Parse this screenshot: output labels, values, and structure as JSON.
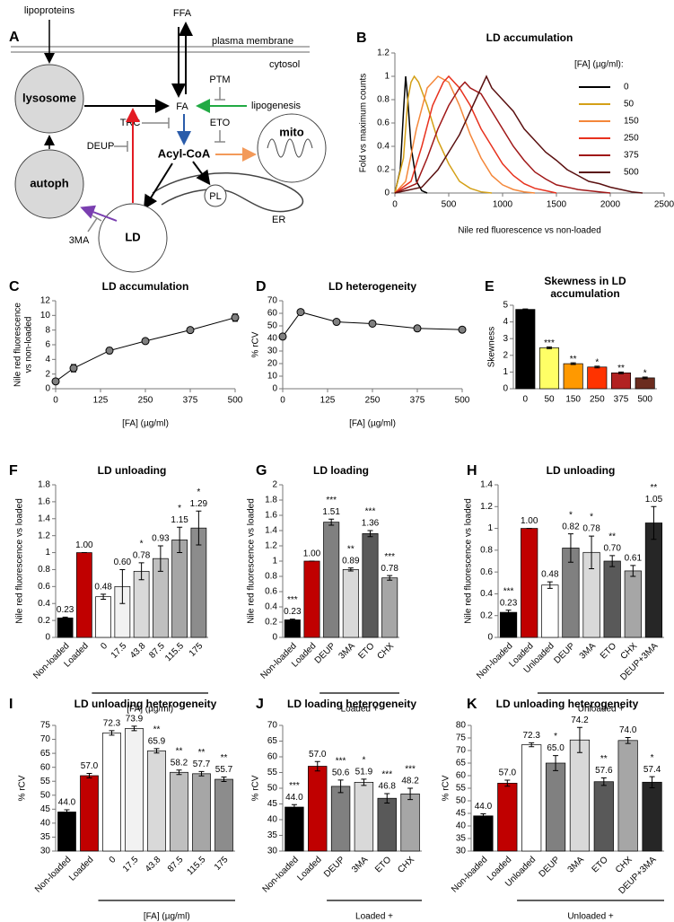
{
  "diagram": {
    "panel": "A",
    "lipoproteins": "lipoproteins",
    "ffa": "FFA",
    "membrane": "plasma membrane",
    "cytosol": "cytosol",
    "ptm": "PTM",
    "lysosome": "lysosome",
    "fa": "FA",
    "lipogenesis": "lipogenesis",
    "trc": "TRC",
    "eto": "ETO",
    "deup": "DEUP",
    "acylcoa": "Acyl-CoA",
    "mito": "mito",
    "autoph": "autoph",
    "pl": "PL",
    "er": "ER",
    "threema": "3MA",
    "ld": "LD"
  },
  "chart_data": [
    {
      "type": "line",
      "panel": "B",
      "title": "LD accumulation",
      "xlabel": "Nile red fluorescence vs non-loaded",
      "ylabel": "Fold vs maximum counts",
      "legend_title": "[FA] (µg/ml):",
      "xlim": [
        0,
        2500
      ],
      "xticks": [
        0,
        500,
        1000,
        1500,
        2000,
        2500
      ],
      "ylim": [
        0,
        1.2
      ],
      "yticks": [
        0,
        0.2,
        0.4,
        0.6,
        0.8,
        1,
        1.2
      ],
      "series": [
        {
          "name": "0",
          "color": "#000000",
          "x": [
            0,
            50,
            80,
            100,
            120,
            150,
            200,
            250,
            300
          ],
          "values": [
            0,
            0.2,
            0.7,
            1,
            0.8,
            0.4,
            0.1,
            0.02,
            0
          ]
        },
        {
          "name": "50",
          "color": "#d4a017",
          "x": [
            0,
            80,
            120,
            150,
            180,
            220,
            300,
            400,
            500,
            600,
            700,
            800,
            900
          ],
          "values": [
            0,
            0.3,
            0.8,
            0.95,
            1,
            0.95,
            0.75,
            0.45,
            0.25,
            0.1,
            0.04,
            0.01,
            0
          ]
        },
        {
          "name": "150",
          "color": "#f4873a",
          "x": [
            0,
            100,
            200,
            300,
            400,
            500,
            600,
            700,
            800,
            900,
            1000,
            1100,
            1200,
            1300
          ],
          "values": [
            0,
            0.1,
            0.55,
            0.9,
            1,
            0.95,
            0.75,
            0.5,
            0.3,
            0.15,
            0.07,
            0.03,
            0.01,
            0
          ]
        },
        {
          "name": "250",
          "color": "#e8321e",
          "x": [
            0,
            150,
            250,
            350,
            450,
            500,
            600,
            700,
            800,
            900,
            1000,
            1100,
            1200,
            1300,
            1400,
            1500
          ],
          "values": [
            0,
            0.1,
            0.4,
            0.75,
            0.95,
            1,
            0.9,
            0.75,
            0.55,
            0.4,
            0.25,
            0.15,
            0.08,
            0.04,
            0.02,
            0
          ]
        },
        {
          "name": "375",
          "color": "#a01818",
          "x": [
            0,
            200,
            300,
            400,
            500,
            600,
            650,
            700,
            800,
            900,
            1000,
            1100,
            1200,
            1300,
            1400,
            1500,
            1700,
            1900,
            2000
          ],
          "values": [
            0,
            0.08,
            0.3,
            0.55,
            0.75,
            0.9,
            0.95,
            0.9,
            0.85,
            0.7,
            0.55,
            0.4,
            0.28,
            0.18,
            0.12,
            0.07,
            0.03,
            0.01,
            0
          ]
        },
        {
          "name": "500",
          "color": "#5a1010",
          "x": [
            0,
            250,
            400,
            500,
            600,
            700,
            800,
            850,
            900,
            1000,
            1100,
            1200,
            1300,
            1400,
            1500,
            1600,
            1700,
            1800,
            1900,
            2000,
            2100,
            2200,
            2300
          ],
          "values": [
            0,
            0.05,
            0.2,
            0.35,
            0.5,
            0.7,
            0.9,
            1,
            0.9,
            0.8,
            0.7,
            0.55,
            0.45,
            0.35,
            0.28,
            0.2,
            0.15,
            0.1,
            0.08,
            0.05,
            0.03,
            0.01,
            0
          ]
        }
      ]
    },
    {
      "type": "line",
      "panel": "C",
      "title": "LD accumulation",
      "xlabel": "[FA] (µg/ml)",
      "ylabel": [
        "Nile red fluorescence",
        "vs non-loaded"
      ],
      "x": [
        0,
        50,
        150,
        250,
        375,
        500
      ],
      "values": [
        1,
        2.8,
        5.2,
        6.5,
        8,
        9.7
      ],
      "errors": [
        0.1,
        0.5,
        0.4,
        0.3,
        0.3,
        0.5
      ],
      "color": "#000000",
      "marker_color": "#808080",
      "xlim": [
        0,
        500
      ],
      "xticks": [
        0,
        125,
        250,
        375,
        500
      ],
      "ylim": [
        0,
        12
      ],
      "yticks": [
        0,
        2,
        4,
        6,
        8,
        10,
        12
      ]
    },
    {
      "type": "line",
      "panel": "D",
      "title": "LD heterogeneity",
      "xlabel": "[FA] (µg/ml)",
      "ylabel": "% rCV",
      "x": [
        0,
        50,
        150,
        250,
        375,
        500
      ],
      "values": [
        41.5,
        61,
        53.2,
        51.8,
        48,
        47
      ],
      "errors": [
        1,
        1.8,
        1.5,
        1,
        2,
        1.8
      ],
      "color": "#000000",
      "marker_color": "#808080",
      "xlim": [
        0,
        500
      ],
      "xticks": [
        0,
        125,
        250,
        375,
        500
      ],
      "ylim": [
        0,
        70
      ],
      "yticks": [
        0,
        10,
        20,
        30,
        40,
        50,
        60,
        70
      ]
    },
    {
      "type": "bar",
      "panel": "E",
      "title": [
        "Skewness in LD",
        "accumulation"
      ],
      "ylabel": "Skewness",
      "categories": [
        "0",
        "50",
        "150",
        "250",
        "375",
        "500"
      ],
      "values": [
        4.75,
        2.45,
        1.5,
        1.3,
        0.95,
        0.65
      ],
      "errors": [
        0.03,
        0.05,
        0.05,
        0.05,
        0.05,
        0.05
      ],
      "stars": [
        null,
        "***",
        "**",
        "*",
        "**",
        "*"
      ],
      "colors": [
        "#000000",
        "#ffff66",
        "#ff9900",
        "#ff3300",
        "#b22222",
        "#6b2c1f"
      ],
      "ylim": [
        0,
        5
      ],
      "yticks": [
        0,
        1,
        2,
        3,
        4,
        5
      ]
    },
    {
      "type": "bar",
      "panel": "F",
      "title": "LD unloading",
      "ylabel": "Nile red fluorescence vs loaded",
      "group_label": "[FA] (µg/ml)",
      "categories": [
        "Non-loaded",
        "Loaded",
        "0",
        "17.5",
        "43.8",
        "87.5",
        "115.5",
        "175"
      ],
      "values": [
        0.23,
        1.0,
        0.48,
        0.6,
        0.78,
        0.93,
        1.15,
        1.29
      ],
      "value_labels": [
        "0.23",
        "1.00",
        "0.48",
        "0.60",
        "0.78",
        "0.93",
        "1.15",
        "1.29"
      ],
      "errors": [
        0.01,
        0,
        0.03,
        0.2,
        0.1,
        0.15,
        0.15,
        0.2
      ],
      "stars": [
        null,
        null,
        null,
        null,
        "*",
        null,
        "*",
        "*"
      ],
      "colors": [
        "#000000",
        "#c00000",
        "#ffffff",
        "#f2f2f2",
        "#d9d9d9",
        "#bfbfbf",
        "#a6a6a6",
        "#8c8c8c"
      ],
      "ylim": [
        0,
        1.8
      ],
      "yticks": [
        0,
        0.2,
        0.4,
        0.6,
        0.8,
        1,
        1.2,
        1.4,
        1.6,
        1.8
      ]
    },
    {
      "type": "bar",
      "panel": "G",
      "title": "LD loading",
      "ylabel": "Nile red fluorescence vs loaded",
      "group_label": "Loaded +",
      "categories": [
        "Non-loaded",
        "Loaded",
        "DEUP",
        "3MA",
        "ETO",
        "CHX"
      ],
      "values": [
        0.23,
        1.0,
        1.51,
        0.89,
        1.36,
        0.78
      ],
      "value_labels": [
        "0.23",
        "1.00",
        "1.51",
        "0.89",
        "1.36",
        "0.78"
      ],
      "errors": [
        0.01,
        0,
        0.04,
        0.02,
        0.04,
        0.03
      ],
      "stars": [
        "***",
        null,
        "***",
        "**",
        "***",
        "***"
      ],
      "colors": [
        "#000000",
        "#c00000",
        "#808080",
        "#d9d9d9",
        "#595959",
        "#a6a6a6"
      ],
      "ylim": [
        0,
        2
      ],
      "yticks": [
        0,
        0.2,
        0.4,
        0.6,
        0.8,
        1,
        1.2,
        1.4,
        1.6,
        1.8,
        2
      ]
    },
    {
      "type": "bar",
      "panel": "H",
      "title": "LD unloading",
      "ylabel": "Nile red fluorescence vs loaded",
      "group_label": "Unloaded +",
      "categories": [
        "Non-loaded",
        "Loaded",
        "Unloaded",
        "DEUP",
        "3MA",
        "ETO",
        "CHX",
        "DEUP+3MA"
      ],
      "values": [
        0.23,
        1.0,
        0.48,
        0.82,
        0.78,
        0.7,
        0.61,
        1.05
      ],
      "value_labels": [
        "0.23",
        "1.00",
        "0.48",
        "0.82",
        "0.78",
        "0.70",
        "0.61",
        "1.05"
      ],
      "errors": [
        0.02,
        0,
        0.03,
        0.13,
        0.15,
        0.05,
        0.05,
        0.15
      ],
      "stars": [
        "***",
        null,
        null,
        "*",
        "*",
        "**",
        null,
        "**"
      ],
      "colors": [
        "#000000",
        "#c00000",
        "#ffffff",
        "#808080",
        "#d9d9d9",
        "#595959",
        "#a6a6a6",
        "#262626"
      ],
      "ylim": [
        0,
        1.4
      ],
      "yticks": [
        0,
        0.2,
        0.4,
        0.6,
        0.8,
        1,
        1.2,
        1.4
      ]
    },
    {
      "type": "bar",
      "panel": "I",
      "title": "LD unloading heterogeneity",
      "ylabel": "% rCV",
      "group_label": "[FA] (µg/ml)",
      "categories": [
        "Non-loaded",
        "Loaded",
        "0",
        "17.5",
        "43.8",
        "87.5",
        "115.5",
        "175"
      ],
      "values": [
        44.0,
        57.0,
        72.3,
        73.9,
        65.9,
        58.2,
        57.7,
        55.7
      ],
      "value_labels": [
        "44.0",
        "57.0",
        "72.3",
        "73.9",
        "65.9",
        "58.2",
        "57.7",
        "55.7"
      ],
      "errors": [
        0.8,
        0.8,
        0.8,
        0.8,
        0.8,
        0.8,
        0.8,
        0.8
      ],
      "stars": [
        null,
        null,
        null,
        null,
        "**",
        "**",
        "**",
        "**"
      ],
      "colors": [
        "#000000",
        "#c00000",
        "#ffffff",
        "#f2f2f2",
        "#d9d9d9",
        "#bfbfbf",
        "#a6a6a6",
        "#8c8c8c"
      ],
      "ylim": [
        30,
        75
      ],
      "yticks": [
        30,
        35,
        40,
        45,
        50,
        55,
        60,
        65,
        70,
        75
      ]
    },
    {
      "type": "bar",
      "panel": "J",
      "title": "LD loading heterogeneity",
      "ylabel": "% rCV",
      "group_label": "Loaded +",
      "categories": [
        "Non-loaded",
        "Loaded",
        "DEUP",
        "3MA",
        "ETO",
        "CHX"
      ],
      "values": [
        44.0,
        57.0,
        50.6,
        51.9,
        46.8,
        48.2
      ],
      "value_labels": [
        "44.0",
        "57.0",
        "50.6",
        "51.9",
        "46.8",
        "48.2"
      ],
      "errors": [
        0.8,
        1.5,
        2,
        1,
        1.5,
        1.8
      ],
      "stars": [
        "***",
        null,
        "***",
        "*",
        "***",
        "***"
      ],
      "colors": [
        "#000000",
        "#c00000",
        "#808080",
        "#d9d9d9",
        "#595959",
        "#a6a6a6"
      ],
      "ylim": [
        30,
        70
      ],
      "yticks": [
        30,
        35,
        40,
        45,
        50,
        55,
        60,
        65,
        70
      ]
    },
    {
      "type": "bar",
      "panel": "K",
      "title": "LD unloading heterogeneity",
      "ylabel": "% rCV",
      "group_label": "Unloaded +",
      "categories": [
        "Non-loaded",
        "Loaded",
        "Unloaded",
        "DEUP",
        "3MA",
        "ETO",
        "CHX",
        "DEUP+3MA"
      ],
      "values": [
        44.0,
        57.0,
        72.3,
        65.0,
        74.2,
        57.6,
        74.0,
        57.4
      ],
      "value_labels": [
        "44.0",
        "57.0",
        "72.3",
        "65.0",
        "74.2",
        "57.6",
        "74.0",
        "57.4"
      ],
      "errors": [
        0.8,
        1.2,
        0.8,
        3,
        5,
        1.5,
        1.2,
        2.2
      ],
      "stars": [
        null,
        null,
        null,
        "*",
        null,
        "**",
        null,
        "*"
      ],
      "colors": [
        "#000000",
        "#c00000",
        "#ffffff",
        "#808080",
        "#d9d9d9",
        "#595959",
        "#a6a6a6",
        "#262626"
      ],
      "ylim": [
        30,
        80
      ],
      "yticks": [
        30,
        35,
        40,
        45,
        50,
        55,
        60,
        65,
        70,
        75,
        80
      ]
    }
  ]
}
